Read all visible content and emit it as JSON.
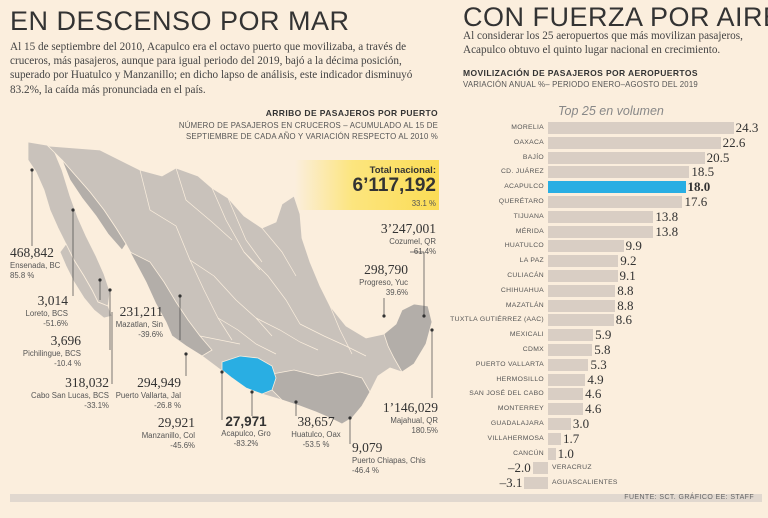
{
  "left": {
    "title": "EN DESCENSO POR MAR",
    "intro": "Al 15 de septiembre del 2010, Acapulco era el octavo puerto que movilizaba, a través de cruceros, más pasajeros, aunque para igual periodo del 2019, bajó a la décima posición, superado por Huatulco y Manzanillo; en dicho lapso de análisis, este indicador disminuyó 83.2%, la caída más pronunciada en el país.",
    "map_title": "ARRIBO DE PASAJEROS POR PUERTO",
    "map_subtitle": "NÚMERO DE PASAJEROS EN CRUCEROS – ACUMULADO AL 15 DE SEPTIEMBRE DE CADA AÑO Y VARIACIÓN RESPECTO AL 2010 %",
    "total": {
      "label": "Total nacional:",
      "value": "6’117,192",
      "pct": "33.1 %"
    },
    "ports": {
      "ensenada": {
        "value": "468,842",
        "name": "Ensenada, BC",
        "pct": "85.8 %"
      },
      "loreto": {
        "value": "3,014",
        "name": "Loreto, BCS",
        "pct": "-51.6%"
      },
      "pichilingue": {
        "value": "3,696",
        "name": "Pichilingue, BCS",
        "pct": "-10.4 %"
      },
      "cabo": {
        "value": "318,032",
        "name": "Cabo San Lucas, BCS",
        "pct": "-33.1%"
      },
      "mazatlan": {
        "value": "231,211",
        "name": "Mazatlan, Sin",
        "pct": "-39.6%"
      },
      "vallarta": {
        "value": "294,949",
        "name": "Puerto Vallarta, Jal",
        "pct": "-26.8 %"
      },
      "manzanillo": {
        "value": "29,921",
        "name": "Manzanillo, Col",
        "pct": "-45.6%"
      },
      "acapulco": {
        "value": "27,971",
        "name": "Acapulco, Gro",
        "pct": "-83.2%"
      },
      "huatulco": {
        "value": "38,657",
        "name": "Huatulco, Oax",
        "pct": "-53.5 %"
      },
      "chiapas": {
        "value": "9,079",
        "name": "Puerto Chiapas, Chis",
        "pct": "-46.4 %"
      },
      "cozumel": {
        "value": "3’247,001",
        "name": "Cozumel, QR",
        "pct": "61.4%"
      },
      "progreso": {
        "value": "298,790",
        "name": "Progreso, Yuc",
        "pct": "39.6%"
      },
      "majahual": {
        "value": "1’146,029",
        "name": "Majahual, QR",
        "pct": "180.5%"
      }
    }
  },
  "right": {
    "title": "CON FUERZA POR AIRE",
    "intro": "Al considerar los 25 aeropuertos que más movilizan pasajeros, Acapulco obtuvo el quinto lugar nacional en crecimiento.",
    "chart_title": "MOVILIZACIÓN DE PASAJEROS POR AEROPUERTOS",
    "chart_subtitle": "VARIACIÓN ANUAL %– PERIODO ENERO–AGOSTO DEL 2019",
    "top_label": "Top 25 en volumen"
  },
  "chart_data": {
    "type": "bar",
    "orientation": "horizontal",
    "title": "MOVILIZACIÓN DE PASAJEROS POR AEROPUERTOS",
    "subtitle": "VARIACIÓN ANUAL %– PERIODO ENERO–AGOSTO DEL 2019",
    "categories": [
      "MORELIA",
      "OAXACA",
      "BAJÍO",
      "CD. JUÁREZ",
      "ACAPULCO",
      "QUERÉTARO",
      "TIJUANA",
      "MÉRIDA",
      "HUATULCO",
      "LA PAZ",
      "CULIACÁN",
      "CHIHUAHUA",
      "MAZATLÁN",
      "TUXTLA GUTIÉRREZ (AAC)",
      "MEXICALI",
      "CDMX",
      "PUERTO VALLARTA",
      "HERMOSILLO",
      "SAN JOSÉ DEL CABO",
      "MONTERREY",
      "GUADALAJARA",
      "VILLAHERMOSA",
      "CANCÚN",
      "VERACRUZ",
      "AGUASCALIENTES"
    ],
    "values": [
      24.3,
      22.6,
      20.5,
      18.5,
      18.0,
      17.6,
      13.8,
      13.8,
      9.9,
      9.2,
      9.1,
      8.8,
      8.8,
      8.6,
      5.9,
      5.8,
      5.3,
      4.9,
      4.6,
      4.6,
      3.0,
      1.7,
      1.0,
      -2.0,
      -3.1
    ],
    "labels": [
      "24.3",
      "22.6",
      "20.5",
      "18.5",
      "18.0",
      "17.6",
      "13.8",
      "13.8",
      "9.9",
      "9.2",
      "9.1",
      "8.8",
      "8.8",
      "8.6",
      "5.9",
      "5.8",
      "5.3",
      "4.9",
      "4.6",
      "4.6",
      "3.0",
      "1.7",
      "1.0",
      "–2.0",
      "–3.1"
    ],
    "highlight": "ACAPULCO",
    "colors": {
      "bar": "#d9cec4",
      "highlight": "#29aee3"
    }
  },
  "colors": {
    "background": "#fbeedd",
    "land": "#c9c2bb",
    "gray_state": "#b3aea9",
    "acapulco": "#29aee3",
    "total_box": "#fbdc55"
  },
  "footer": "FUENTE: SCT. GRÁFICO EE: STAFF"
}
